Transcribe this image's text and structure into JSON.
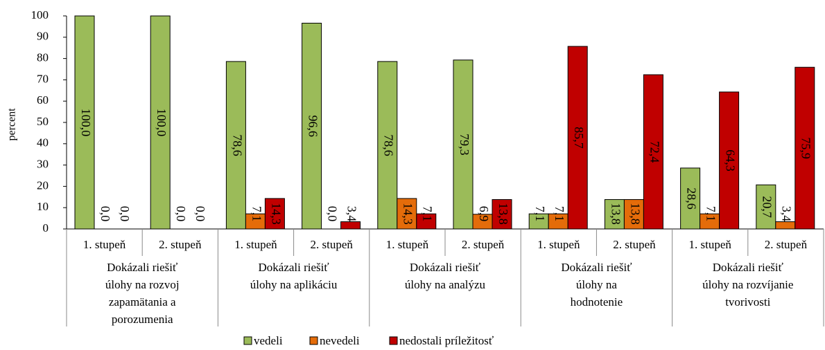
{
  "chart_data": {
    "type": "bar",
    "y_label": "percent",
    "categories": [
      "1. stupeň",
      "2. stupeň",
      "1. stupeň",
      "2. stupeň",
      "1. stupeň",
      "2. stupeň",
      "1. stupeň",
      "2. stupeň",
      "1. stupeň",
      "2. stupeň"
    ],
    "groups": [
      {
        "lines": [
          "Dokázali riešiť",
          "úlohy na rozvoj",
          "zapamätania a",
          "porozumenia"
        ],
        "size": 2
      },
      {
        "lines": [
          "Dokázali riešiť",
          "úlohy na aplikáciu"
        ],
        "size": 2
      },
      {
        "lines": [
          "Dokázali riešiť",
          "úlohy na analýzu"
        ],
        "size": 2
      },
      {
        "lines": [
          "Dokázali riešiť",
          "úlohy na",
          "hodnotenie"
        ],
        "size": 2
      },
      {
        "lines": [
          "Dokázali riešiť",
          "úlohy na rozvíjanie",
          "tvorivosti"
        ],
        "size": 2
      }
    ],
    "series": [
      {
        "name": "vedeli",
        "color": "#9bbb59",
        "values": [
          100,
          100,
          78.6,
          96.6,
          78.6,
          79.3,
          7.1,
          13.8,
          28.6,
          20.7
        ],
        "value_labels": [
          "100,0",
          "100,0",
          "78,6",
          "96,6",
          "78,6",
          "79,3",
          "7,1",
          "13,8",
          "28,6",
          "20,7"
        ]
      },
      {
        "name": "nevedeli",
        "color": "#e46c0a",
        "values": [
          0,
          0,
          7.1,
          0,
          14.3,
          6.9,
          7.1,
          13.8,
          7.1,
          3.4
        ],
        "value_labels": [
          "0,0",
          "0,0",
          "7,1",
          "0,0",
          "14,3",
          "6,9",
          "7,1",
          "13,8",
          "7,1",
          "3,4"
        ]
      },
      {
        "name": "nedostali príležitosť",
        "color": "#c00000",
        "values": [
          0,
          0,
          14.3,
          3.4,
          7.1,
          13.8,
          85.7,
          72.4,
          64.3,
          75.9
        ],
        "value_labels": [
          "0,0",
          "0,0",
          "14,3",
          "3,4",
          "7,1",
          "13,8",
          "85,7",
          "72,4",
          "64,3",
          "75,9"
        ]
      }
    ],
    "ylim": [
      0,
      100
    ],
    "yticks": [
      0,
      10,
      20,
      30,
      40,
      50,
      60,
      70,
      80,
      90,
      100
    ],
    "legend": "bottom"
  }
}
